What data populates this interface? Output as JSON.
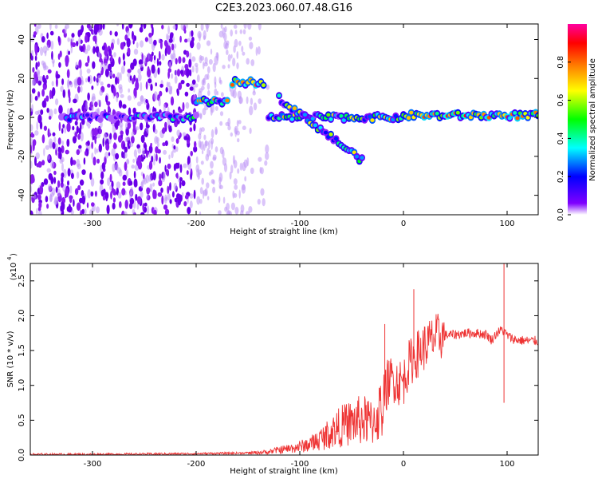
{
  "title": "C2E3.2023.060.07.48.G16",
  "chart_data": [
    {
      "type": "heatmap",
      "title": "C2E3.2023.060.07.48.G16",
      "xlabel": "Height of straight line (km)",
      "ylabel": "Frequency (Hz)",
      "xlim": [
        -360,
        130
      ],
      "ylim": [
        -50,
        48
      ],
      "xticks": [
        -300,
        -200,
        -100,
        0,
        100
      ],
      "yticks": [
        -40,
        -20,
        0,
        20,
        40
      ],
      "colorbar": {
        "label": "Normalized spectral amplitude",
        "range": [
          0,
          1
        ],
        "ticks": [
          0.0,
          0.2,
          0.4,
          0.6,
          0.8
        ],
        "colors": [
          "#ffffff",
          "#7f00ff",
          "#0000ff",
          "#00ffff",
          "#00ff00",
          "#ffff00",
          "#ff7f00",
          "#ff0000",
          "#ff00a0"
        ]
      },
      "traces": [
        {
          "x": [
            -330,
            -200
          ],
          "y": 0,
          "amplitude": 0.25
        },
        {
          "x": [
            -130,
            0
          ],
          "y": 0,
          "amplitude": 0.45
        },
        {
          "x": [
            0,
            130
          ],
          "y": 1,
          "amplitude": 0.6
        },
        {
          "x": [
            -200,
            -170
          ],
          "y": 8,
          "amplitude": 0.5
        },
        {
          "x": [
            -165,
            -135
          ],
          "y": 18,
          "amplitude": 0.55
        },
        {
          "x": [
            -120,
            -40
          ],
          "y": [
            10,
            -22
          ],
          "amplitude": 0.45
        }
      ]
    },
    {
      "type": "line",
      "xlabel": "Height of straight line (km)",
      "ylabel": "SNR (10 * v/v)",
      "y_multiplier": "(x10",
      "y_multiplier_exp": "4",
      "xlim": [
        -360,
        130
      ],
      "ylim": [
        0,
        2.75
      ],
      "xticks": [
        -300,
        -200,
        -100,
        0,
        100
      ],
      "yticks": [
        "0.0",
        "0.5",
        "1.0",
        "1.5",
        "2.0",
        "2.5"
      ],
      "series": [
        {
          "color": "#ee3333",
          "x": [
            -360,
            -300,
            -200,
            -150,
            -130,
            -120,
            -110,
            -100,
            -90,
            -80,
            -70,
            -60,
            -50,
            -40,
            -30,
            -20,
            -15,
            -10,
            -5,
            0,
            5,
            10,
            20,
            30,
            40,
            50,
            60,
            70,
            80,
            85,
            90,
            95,
            100,
            105,
            110,
            120,
            130
          ],
          "y": [
            0.01,
            0.01,
            0.02,
            0.03,
            0.05,
            0.08,
            0.1,
            0.13,
            0.17,
            0.25,
            0.35,
            0.45,
            0.5,
            0.55,
            0.5,
            0.75,
            1.05,
            1.1,
            1.05,
            1.05,
            1.3,
            1.4,
            1.55,
            1.68,
            1.72,
            1.73,
            1.75,
            1.75,
            1.73,
            1.65,
            1.75,
            1.8,
            1.72,
            1.67,
            1.65,
            1.64,
            1.64
          ]
        }
      ],
      "spikes": [
        {
          "x": -18,
          "y": 1.88
        },
        {
          "x": 10,
          "y": 2.38
        },
        {
          "x": 97,
          "y": 2.75
        },
        {
          "x": 97,
          "y": 0.75
        }
      ]
    }
  ]
}
